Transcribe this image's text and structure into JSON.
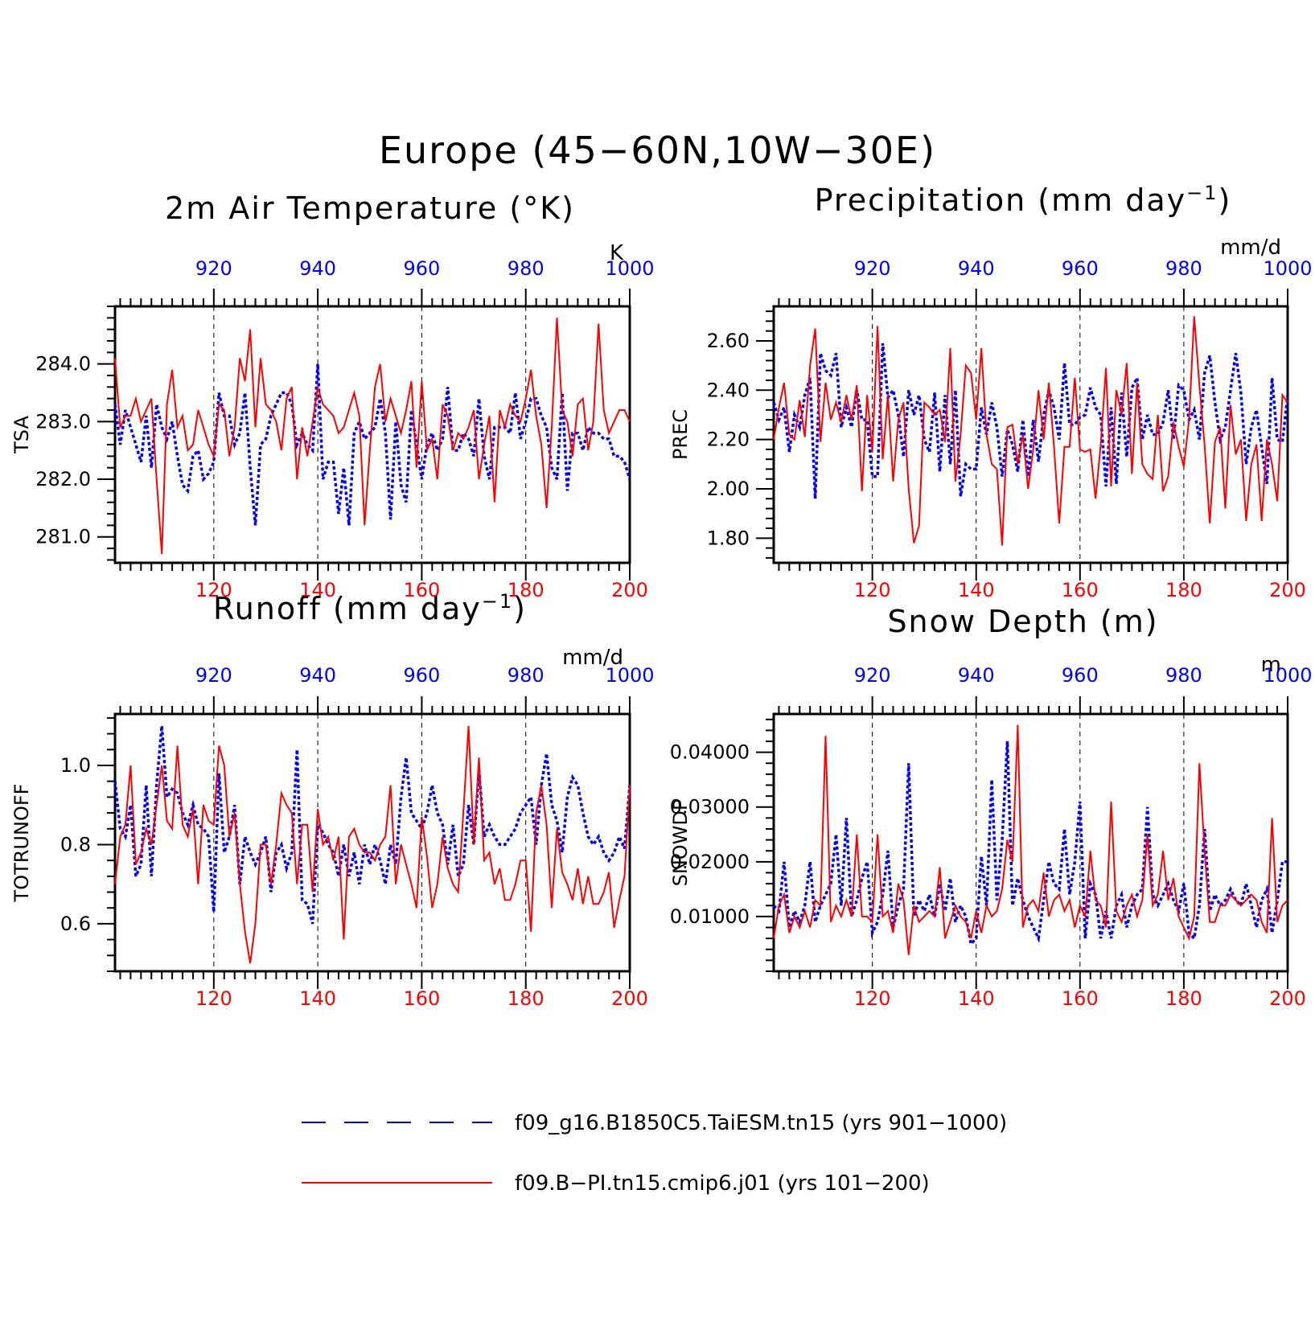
{
  "figure": {
    "title": "Europe (45−60N,10W−30E)"
  },
  "colors": {
    "series_a": "#0000ff",
    "series_b": "#ff0000",
    "frame": "#000000"
  },
  "legend": {
    "items": [
      {
        "label": "f09_g16.B1850C5.TaiESM.tn15 (yrs 901−1000)",
        "style": "dashed",
        "color": "#0000ff"
      },
      {
        "label": "f09.B−PI.tn15.cmip6.j01 (yrs 101−200)",
        "style": "solid",
        "color": "#ff0000"
      }
    ]
  },
  "chart_data": [
    {
      "type": "line",
      "title": "2m Air Temperature (°K)",
      "ylabel": "TSA",
      "units": "K",
      "xlim": [
        101,
        200
      ],
      "x_top_ticks": [
        920,
        940,
        960,
        980,
        1000
      ],
      "x_bottom_ticks": [
        120,
        140,
        160,
        180,
        200
      ],
      "ylim": [
        280.55,
        285.0
      ],
      "yticks": [
        281.0,
        282.0,
        283.0,
        284.0
      ],
      "ytick_labels": [
        "281.0",
        "282.0",
        "283.0",
        "284.0"
      ],
      "dashed_vlines": [
        120,
        140,
        160,
        180
      ],
      "series": [
        {
          "name": "f09_g16.B1850C5.TaiESM.tn15 (yrs 901−1000)",
          "style": "dotted",
          "values": [
            283.3,
            282.6,
            283.2,
            282.9,
            282.6,
            282.3,
            283.1,
            282.2,
            283.3,
            282.9,
            282.7,
            283.0,
            282.4,
            281.9,
            281.8,
            282.4,
            282.5,
            282.0,
            282.1,
            282.3,
            283.5,
            283.1,
            283.1,
            282.6,
            282.8,
            283.5,
            282.2,
            281.2,
            282.6,
            282.7,
            283.1,
            283.3,
            283.5,
            283.5,
            283.3,
            282.6,
            282.8,
            282.6,
            282.5,
            284.0,
            282.0,
            282.3,
            282.3,
            281.4,
            282.2,
            281.2,
            282.8,
            283.0,
            282.7,
            282.8,
            282.9,
            283.4,
            282.8,
            281.3,
            283.0,
            281.9,
            281.6,
            283.2,
            282.6,
            282.0,
            282.6,
            282.8,
            282.5,
            282.7,
            283.6,
            282.5,
            282.5,
            282.8,
            282.7,
            282.4,
            283.4,
            282.4,
            282.0,
            282.9,
            282.9,
            282.9,
            282.8,
            283.5,
            282.7,
            283.0,
            283.4,
            283.4,
            283.1,
            282.9,
            282.2,
            282.0,
            283.5,
            281.8,
            282.8,
            282.8,
            282.5,
            282.9,
            282.8,
            282.8,
            282.7,
            282.7,
            282.4,
            282.4,
            282.3,
            282.0
          ]
        },
        {
          "name": "f09.B−PI.tn15.cmip6.j01 (yrs 101−200)",
          "style": "solid",
          "values": [
            284.1,
            282.9,
            283.1,
            283.1,
            283.4,
            283.0,
            283.2,
            283.4,
            282.0,
            280.7,
            283.3,
            283.9,
            282.9,
            283.1,
            282.5,
            282.6,
            283.2,
            282.9,
            282.6,
            282.4,
            283.3,
            283.2,
            282.4,
            282.9,
            284.1,
            283.7,
            284.6,
            282.9,
            284.1,
            283.3,
            283.2,
            283.0,
            282.5,
            283.4,
            283.6,
            282.0,
            282.9,
            282.4,
            283.0,
            283.6,
            283.3,
            283.2,
            283.1,
            282.8,
            282.9,
            283.2,
            283.5,
            283.1,
            281.2,
            282.5,
            283.6,
            284.0,
            283.0,
            283.4,
            283.1,
            282.8,
            283.2,
            283.7,
            282.2,
            283.7,
            282.5,
            282.7,
            282.0,
            283.3,
            283.1,
            282.5,
            282.8,
            282.7,
            282.9,
            283.2,
            282.0,
            282.6,
            283.1,
            281.6,
            283.2,
            282.9,
            283.3,
            283.1,
            283.0,
            283.4,
            283.9,
            283.1,
            282.6,
            281.5,
            282.9,
            284.8,
            283.2,
            283.0,
            282.4,
            283.3,
            283.4,
            282.5,
            283.0,
            284.7,
            283.2,
            282.8,
            283.0,
            283.2,
            283.2,
            283.0
          ]
        }
      ]
    },
    {
      "type": "line",
      "title": "Precipitation (mm day⁻¹)",
      "ylabel": "PREC",
      "units": "mm/d",
      "xlim": [
        101,
        200
      ],
      "x_top_ticks": [
        920,
        940,
        960,
        980,
        1000
      ],
      "x_bottom_ticks": [
        120,
        140,
        160,
        180,
        200
      ],
      "ylim": [
        1.7,
        2.74
      ],
      "yticks": [
        1.8,
        2.0,
        2.2,
        2.4,
        2.6
      ],
      "ytick_labels": [
        "1.80",
        "2.00",
        "2.20",
        "2.40",
        "2.60"
      ],
      "dashed_vlines": [
        120,
        140,
        160,
        180
      ],
      "series": [
        {
          "name": "f09_g16.B1850C5.TaiESM.tn15 (yrs 901−1000)",
          "style": "dotted",
          "values": [
            2.35,
            2.28,
            2.33,
            2.15,
            2.3,
            2.25,
            2.38,
            2.45,
            1.96,
            2.55,
            2.48,
            2.46,
            2.55,
            2.25,
            2.33,
            2.25,
            2.4,
            2.28,
            2.28,
            2.05,
            2.05,
            2.59,
            2.37,
            2.4,
            2.3,
            2.13,
            2.4,
            2.3,
            2.38,
            2.2,
            2.15,
            2.39,
            2.07,
            2.38,
            2.1,
            2.4,
            1.97,
            2.1,
            2.08,
            2.08,
            2.33,
            2.22,
            2.35,
            2.25,
            2.05,
            2.24,
            2.18,
            2.07,
            2.28,
            2.05,
            2.28,
            2.11,
            2.3,
            2.4,
            2.33,
            2.2,
            2.51,
            2.26,
            2.26,
            2.29,
            2.3,
            2.41,
            2.33,
            2.3,
            2.01,
            2.33,
            2.02,
            2.39,
            2.13,
            2.41,
            2.45,
            2.2,
            2.3,
            2.22,
            2.22,
            2.27,
            2.4,
            2.2,
            2.42,
            2.4,
            2.28,
            2.32,
            2.2,
            2.47,
            2.54,
            2.35,
            2.2,
            2.25,
            2.4,
            2.55,
            2.39,
            2.1,
            2.25,
            2.32,
            2.17,
            2.02,
            2.45,
            2.2,
            2.19,
            2.38
          ]
        },
        {
          "name": "f09.B−PI.tn15.cmip6.j01 (yrs 101−200)",
          "style": "solid",
          "values": [
            2.2,
            2.33,
            2.43,
            2.22,
            2.2,
            2.36,
            2.21,
            2.5,
            2.65,
            2.19,
            2.43,
            2.28,
            2.35,
            2.27,
            2.38,
            2.28,
            2.42,
            1.99,
            2.38,
            2.15,
            2.66,
            2.12,
            2.38,
            2.03,
            2.28,
            2.35,
            2.0,
            1.78,
            1.85,
            2.35,
            2.33,
            2.3,
            2.32,
            2.19,
            2.57,
            2.03,
            2.22,
            2.5,
            2.47,
            2.28,
            2.57,
            2.22,
            2.1,
            2.08,
            1.77,
            2.25,
            2.26,
            2.1,
            2.22,
            2.0,
            2.16,
            2.4,
            2.2,
            2.43,
            2.17,
            1.86,
            2.17,
            2.17,
            2.45,
            2.16,
            2.15,
            2.16,
            1.96,
            2.18,
            2.49,
            2.01,
            2.4,
            2.3,
            2.51,
            2.06,
            2.43,
            2.1,
            2.06,
            2.04,
            2.3,
            1.99,
            2.05,
            2.27,
            2.17,
            2.09,
            2.28,
            2.7,
            2.42,
            2.18,
            1.86,
            2.19,
            2.25,
            1.92,
            2.34,
            2.14,
            2.2,
            1.87,
            2.1,
            2.18,
            1.87,
            2.2,
            2.1,
            1.95,
            2.38,
            2.35
          ]
        }
      ]
    },
    {
      "type": "line",
      "title": "Runoff (mm day⁻¹)",
      "ylabel": "TOTRUNOFF",
      "units": "mm/d",
      "xlim": [
        101,
        200
      ],
      "x_top_ticks": [
        920,
        940,
        960,
        980,
        1000
      ],
      "x_bottom_ticks": [
        120,
        140,
        160,
        180,
        200
      ],
      "ylim": [
        0.48,
        1.13
      ],
      "yticks": [
        0.6,
        0.8,
        1.0
      ],
      "ytick_labels": [
        "0.6",
        "0.8",
        "1.0"
      ],
      "dashed_vlines": [
        120,
        140,
        160,
        180
      ],
      "series": [
        {
          "name": "f09_g16.B1850C5.TaiESM.tn15 (yrs 901−1000)",
          "style": "dotted",
          "values": [
            0.96,
            0.84,
            0.82,
            0.9,
            0.72,
            0.75,
            0.95,
            0.72,
            0.95,
            1.1,
            0.92,
            0.94,
            0.93,
            0.88,
            0.85,
            0.9,
            0.85,
            0.84,
            0.82,
            0.63,
            0.98,
            0.78,
            0.82,
            0.9,
            0.7,
            0.82,
            0.78,
            0.75,
            0.78,
            0.82,
            0.68,
            0.78,
            0.8,
            0.74,
            0.78,
            1.04,
            0.66,
            0.65,
            0.6,
            0.85,
            0.83,
            0.8,
            0.78,
            0.72,
            0.8,
            0.72,
            0.78,
            0.7,
            0.8,
            0.75,
            0.8,
            0.76,
            0.7,
            0.8,
            0.75,
            0.92,
            1.02,
            0.88,
            0.86,
            0.84,
            0.88,
            0.95,
            0.88,
            0.85,
            0.75,
            0.85,
            0.72,
            0.75,
            0.9,
            0.8,
            0.99,
            0.82,
            0.85,
            0.82,
            0.8,
            0.8,
            0.82,
            0.84,
            0.88,
            0.9,
            0.92,
            0.8,
            0.95,
            1.03,
            0.9,
            0.86,
            0.78,
            0.92,
            0.97,
            0.95,
            0.88,
            0.82,
            0.8,
            0.82,
            0.78,
            0.76,
            0.78,
            0.82,
            0.79,
            0.95
          ]
        },
        {
          "name": "f09.B−PI.tn15.cmip6.j01 (yrs 101−200)",
          "style": "solid",
          "values": [
            0.7,
            0.82,
            0.85,
            1.0,
            0.75,
            0.78,
            0.84,
            0.8,
            0.9,
            1.0,
            0.86,
            0.84,
            1.05,
            0.85,
            0.82,
            0.89,
            0.7,
            0.9,
            0.86,
            0.85,
            1.05,
            1.0,
            0.82,
            0.88,
            0.7,
            0.58,
            0.5,
            0.6,
            0.8,
            0.8,
            0.7,
            0.8,
            0.93,
            0.9,
            0.88,
            0.7,
            0.85,
            0.85,
            0.68,
            0.89,
            0.8,
            0.82,
            0.76,
            0.82,
            0.56,
            0.82,
            0.84,
            0.8,
            0.78,
            0.78,
            0.76,
            0.8,
            0.82,
            0.95,
            0.7,
            0.8,
            0.75,
            0.7,
            0.64,
            0.87,
            0.77,
            0.64,
            0.7,
            0.82,
            0.74,
            0.7,
            0.68,
            0.88,
            1.1,
            0.8,
            1.02,
            0.76,
            0.78,
            0.7,
            0.74,
            0.66,
            0.66,
            0.7,
            0.76,
            0.76,
            0.58,
            0.88,
            0.95,
            0.85,
            0.64,
            0.84,
            0.73,
            0.7,
            0.66,
            0.74,
            0.65,
            0.72,
            0.65,
            0.65,
            0.68,
            0.73,
            0.59,
            0.66,
            0.72,
            0.95
          ]
        }
      ]
    },
    {
      "type": "line",
      "title": "Snow Depth (m)",
      "ylabel": "SNOWDP",
      "units": "m",
      "xlim": [
        101,
        200
      ],
      "x_top_ticks": [
        920,
        940,
        960,
        980,
        1000
      ],
      "x_bottom_ticks": [
        120,
        140,
        160,
        180,
        200
      ],
      "ylim": [
        0.0,
        0.047
      ],
      "yticks": [
        0.01,
        0.02,
        0.03,
        0.04
      ],
      "ytick_labels": [
        "0.01000",
        "0.02000",
        "0.03000",
        "0.04000"
      ],
      "dashed_vlines": [
        120,
        140,
        160,
        180
      ],
      "series": [
        {
          "name": "f09_g16.B1850C5.TaiESM.tn15 (yrs 901−1000)",
          "style": "dotted",
          "values": [
            0.012,
            0.011,
            0.02,
            0.008,
            0.011,
            0.009,
            0.012,
            0.02,
            0.009,
            0.012,
            0.014,
            0.016,
            0.025,
            0.012,
            0.028,
            0.01,
            0.013,
            0.017,
            0.02,
            0.007,
            0.009,
            0.014,
            0.022,
            0.008,
            0.012,
            0.015,
            0.038,
            0.01,
            0.013,
            0.011,
            0.014,
            0.01,
            0.016,
            0.011,
            0.017,
            0.009,
            0.012,
            0.01,
            0.005,
            0.006,
            0.021,
            0.012,
            0.035,
            0.013,
            0.024,
            0.042,
            0.012,
            0.017,
            0.013,
            0.01,
            0.008,
            0.006,
            0.013,
            0.02,
            0.016,
            0.015,
            0.026,
            0.014,
            0.02,
            0.031,
            0.006,
            0.016,
            0.014,
            0.006,
            0.011,
            0.006,
            0.012,
            0.014,
            0.008,
            0.012,
            0.014,
            0.015,
            0.03,
            0.014,
            0.012,
            0.014,
            0.016,
            0.013,
            0.011,
            0.016,
            0.007,
            0.006,
            0.012,
            0.026,
            0.011,
            0.014,
            0.012,
            0.013,
            0.015,
            0.013,
            0.012,
            0.016,
            0.012,
            0.008,
            0.013,
            0.015,
            0.007,
            0.013,
            0.02,
            0.02
          ]
        },
        {
          "name": "f09.B−PI.tn15.cmip6.j01 (yrs 101−200)",
          "style": "solid",
          "values": [
            0.006,
            0.012,
            0.014,
            0.007,
            0.01,
            0.008,
            0.011,
            0.008,
            0.013,
            0.012,
            0.043,
            0.009,
            0.012,
            0.01,
            0.013,
            0.01,
            0.025,
            0.01,
            0.01,
            0.009,
            0.025,
            0.01,
            0.011,
            0.007,
            0.016,
            0.013,
            0.003,
            0.012,
            0.009,
            0.01,
            0.011,
            0.01,
            0.019,
            0.006,
            0.009,
            0.012,
            0.01,
            0.009,
            0.006,
            0.011,
            0.007,
            0.012,
            0.01,
            0.011,
            0.015,
            0.024,
            0.02,
            0.045,
            0.008,
            0.012,
            0.013,
            0.011,
            0.018,
            0.01,
            0.013,
            0.014,
            0.011,
            0.013,
            0.008,
            0.012,
            0.01,
            0.022,
            0.013,
            0.012,
            0.008,
            0.031,
            0.011,
            0.009,
            0.012,
            0.014,
            0.01,
            0.013,
            0.025,
            0.012,
            0.014,
            0.022,
            0.013,
            0.017,
            0.01,
            0.008,
            0.006,
            0.01,
            0.038,
            0.022,
            0.009,
            0.009,
            0.012,
            0.012,
            0.014,
            0.013,
            0.012,
            0.013,
            0.014,
            0.013,
            0.009,
            0.007,
            0.028,
            0.009,
            0.012,
            0.013
          ]
        }
      ]
    }
  ]
}
